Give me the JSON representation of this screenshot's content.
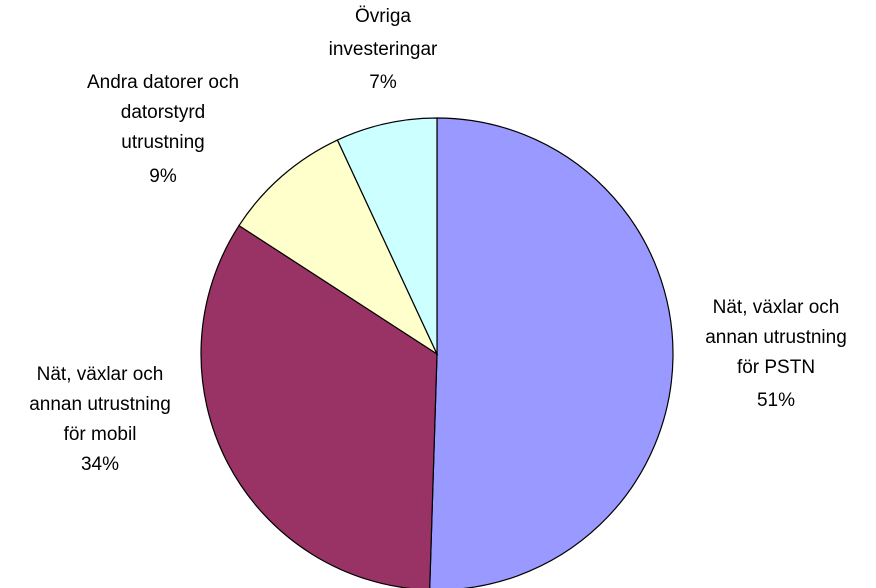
{
  "chart_data": {
    "type": "pie",
    "categories": [
      "Nät, växlar och\nannan utrustning\nför PSTN",
      "Nät, växlar och\nannan utrustning\nför mobil",
      "Andra datorer och\ndatorstyrd\nutrustning",
      "Övriga\ninvesteringar"
    ],
    "values": [
      51,
      34,
      9,
      7
    ],
    "value_labels": [
      "51%",
      "34%",
      "9%",
      "7%"
    ],
    "colors": [
      "#9999ff",
      "#993366",
      "#ffffcc",
      "#ccffff"
    ]
  }
}
